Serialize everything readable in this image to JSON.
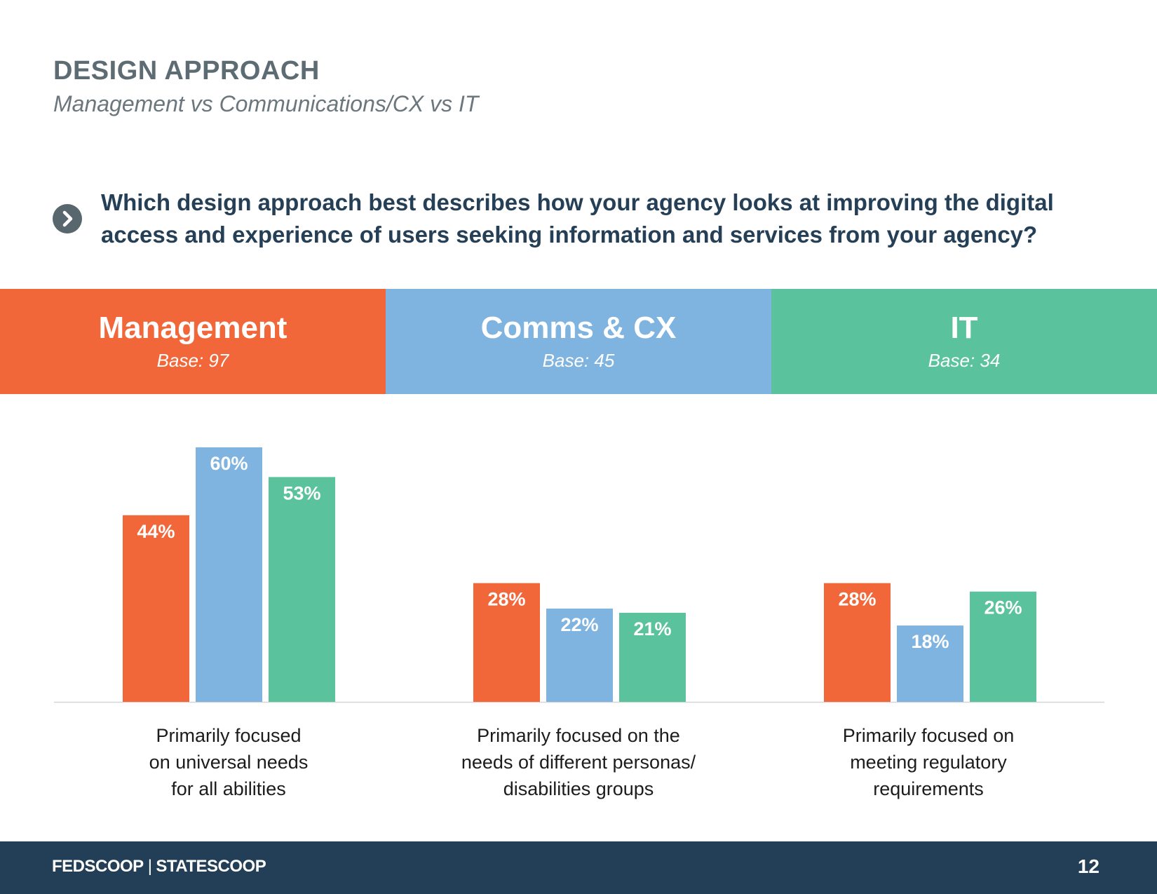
{
  "header": {
    "title": "DESIGN APPROACH",
    "subtitle": "Management vs Communications/CX vs IT"
  },
  "question": {
    "icon": "chevron-right-circle-icon",
    "text": "Which design approach best describes how your agency looks at improving the digital access and experience of users seeking information and services from your agency?"
  },
  "groups": [
    {
      "name": "Management",
      "base": "Base: 97",
      "color": "#f26739"
    },
    {
      "name": "Comms & CX",
      "base": "Base: 45",
      "color": "#7fb3e0"
    },
    {
      "name": "IT",
      "base": "Base: 34",
      "color": "#5bc29e"
    }
  ],
  "chart_data": {
    "type": "bar",
    "categories": [
      "Primarily focused\non universal needs\nfor all abilities",
      "Primarily focused on the\nneeds of different personas/\ndisabilities groups",
      "Primarily focused on\nmeeting regulatory\nrequirements"
    ],
    "series": [
      {
        "name": "Management",
        "values": [
          44,
          28,
          28
        ],
        "labels": [
          "44%",
          "28%",
          "28%"
        ],
        "color": "#f26739"
      },
      {
        "name": "Comms & CX",
        "values": [
          60,
          22,
          18
        ],
        "labels": [
          "60%",
          "22%",
          "18%"
        ],
        "color": "#7fb3e0"
      },
      {
        "name": "IT",
        "values": [
          53,
          21,
          26
        ],
        "labels": [
          "53%",
          "21%",
          "26%"
        ],
        "color": "#5bc29e"
      }
    ],
    "ylim": [
      0,
      70
    ],
    "grid": false,
    "legend": "top"
  },
  "footer": {
    "brand_left": "FEDSCOOP",
    "brand_separator": "|",
    "brand_right": "STATESCOOP",
    "page_number": "12"
  }
}
